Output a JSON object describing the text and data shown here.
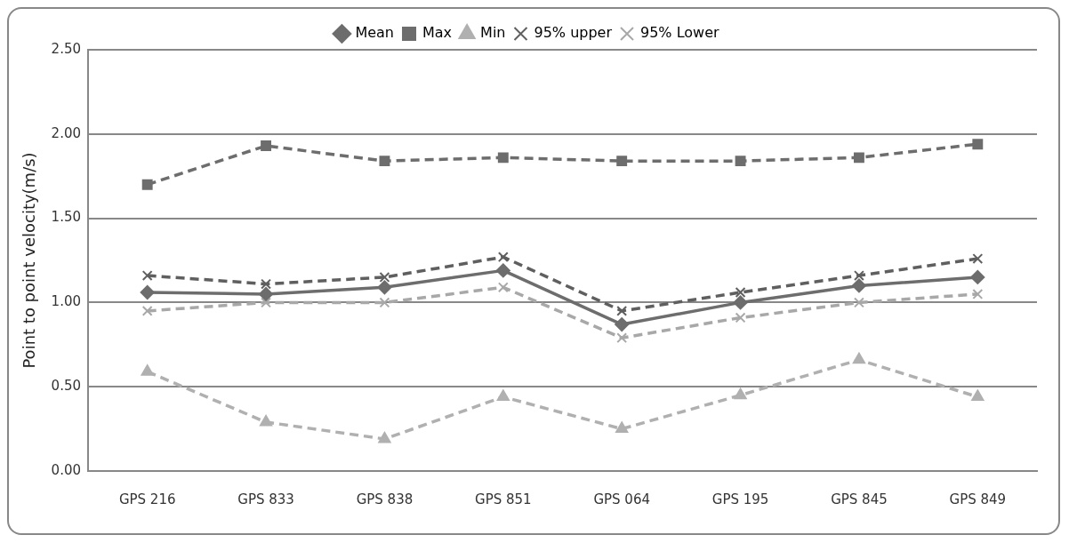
{
  "chart_data": {
    "type": "line",
    "ylabel": "Point to point velocity(m/s)",
    "categories": [
      "GPS 216",
      "GPS 833",
      "GPS 838",
      "GPS 851",
      "GPS 064",
      "GPS 195",
      "GPS 845",
      "GPS 849"
    ],
    "series": [
      {
        "name": "Mean",
        "color": "#6d6d6d",
        "marker": "diamond",
        "line_style": "solid",
        "values": [
          1.06,
          1.05,
          1.09,
          1.19,
          0.87,
          1.0,
          1.1,
          1.15
        ]
      },
      {
        "name": "Max",
        "color": "#6d6d6d",
        "marker": "square",
        "line_style": "dashed",
        "values": [
          1.7,
          1.93,
          1.84,
          1.86,
          1.84,
          1.84,
          1.86,
          1.94
        ]
      },
      {
        "name": "Min",
        "color": "#b0b0b0",
        "marker": "triangle",
        "line_style": "dashed",
        "values": [
          0.59,
          0.29,
          0.19,
          0.44,
          0.25,
          0.45,
          0.66,
          0.44
        ]
      },
      {
        "name": "95% upper",
        "color": "#5f5f5f",
        "marker": "cross",
        "line_style": "dashed",
        "values": [
          1.16,
          1.11,
          1.15,
          1.27,
          0.95,
          1.06,
          1.16,
          1.26
        ]
      },
      {
        "name": "95% Lower",
        "color": "#a8a8a8",
        "marker": "cross",
        "line_style": "dashed",
        "values": [
          0.95,
          1.0,
          1.0,
          1.09,
          0.79,
          0.91,
          1.0,
          1.05
        ]
      }
    ],
    "ylim": [
      0,
      2.5
    ],
    "yticks": [
      {
        "value": 0,
        "label": "0.00"
      },
      {
        "value": 0.5,
        "label": "0.50"
      },
      {
        "value": 1,
        "label": "1.00"
      },
      {
        "value": 1.5,
        "label": "1.50"
      },
      {
        "value": 2,
        "label": "2.00"
      },
      {
        "value": 2.5,
        "label": "2.50"
      }
    ],
    "grid": "y",
    "legend": "top"
  }
}
